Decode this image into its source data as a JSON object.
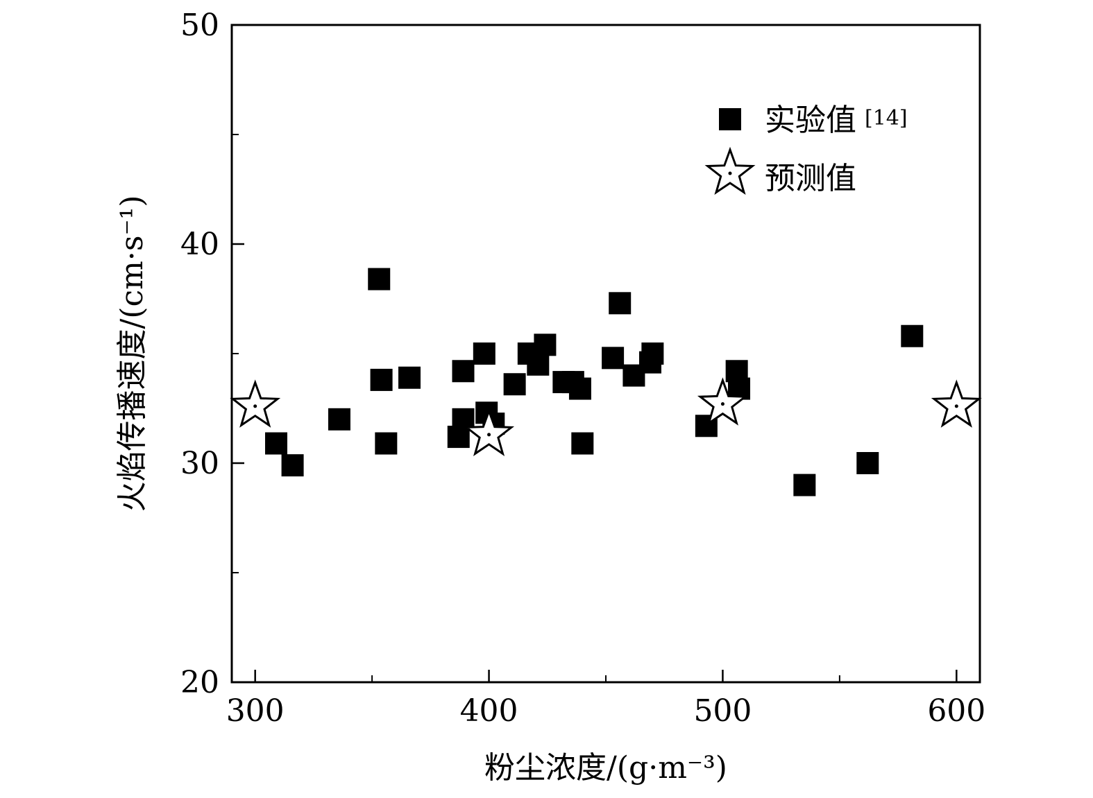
{
  "chart_data": {
    "type": "scatter",
    "xlabel": "粉尘浓度/(g·m⁻³)",
    "ylabel": "火焰传播速度/(cm·s⁻¹)",
    "xlim": [
      290,
      610
    ],
    "ylim": [
      20,
      50
    ],
    "x_ticks": [
      300,
      400,
      500,
      600
    ],
    "y_ticks": [
      20,
      30,
      40,
      50
    ],
    "x_minor_ticks": [
      350,
      450,
      550
    ],
    "y_minor_ticks": [
      25,
      35,
      45
    ],
    "grid": false,
    "legend_position": "top-right",
    "series": [
      {
        "name": "实验值",
        "name_sup": "[14]",
        "marker": "square",
        "points": [
          [
            309,
            30.9
          ],
          [
            316,
            29.9
          ],
          [
            336,
            32.0
          ],
          [
            353,
            38.4
          ],
          [
            354,
            33.8
          ],
          [
            356,
            30.9
          ],
          [
            366,
            33.9
          ],
          [
            387,
            31.2
          ],
          [
            389,
            32.0
          ],
          [
            389,
            34.2
          ],
          [
            398,
            35.0
          ],
          [
            399,
            32.3
          ],
          [
            402,
            31.8
          ],
          [
            411,
            33.6
          ],
          [
            417,
            35.0
          ],
          [
            421,
            34.5
          ],
          [
            424,
            35.4
          ],
          [
            432,
            33.7
          ],
          [
            436,
            33.7
          ],
          [
            439,
            33.4
          ],
          [
            440,
            30.9
          ],
          [
            453,
            34.8
          ],
          [
            456,
            37.3
          ],
          [
            462,
            34.0
          ],
          [
            469,
            34.6
          ],
          [
            470,
            35.0
          ],
          [
            493,
            31.7
          ],
          [
            506,
            34.2
          ],
          [
            507,
            33.4
          ],
          [
            535,
            29.0
          ],
          [
            562,
            30.0
          ],
          [
            581,
            35.8
          ]
        ]
      },
      {
        "name": "预测值",
        "marker": "star",
        "points": [
          [
            300,
            32.6
          ],
          [
            400,
            31.3
          ],
          [
            500,
            32.7
          ],
          [
            600,
            32.6
          ]
        ]
      }
    ]
  }
}
